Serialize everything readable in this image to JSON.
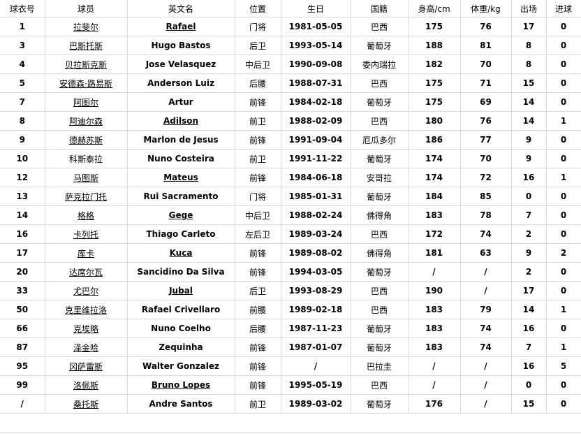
{
  "columns": [
    "球衣号",
    "球员",
    "英文名",
    "位置",
    "生日",
    "国籍",
    "身高/cm",
    "体重/kg",
    "出场",
    "进球"
  ],
  "rows": [
    {
      "no": "1",
      "cn": "拉斐尔",
      "cn_link": true,
      "en": "Rafael",
      "en_link": true,
      "pos": "门将",
      "dob": "1981-05-05",
      "nat": "巴西",
      "h": "175",
      "w": "76",
      "apps": "17",
      "goals": "0"
    },
    {
      "no": "3",
      "cn": "巴斯托斯",
      "cn_link": true,
      "en": "Hugo Bastos",
      "en_link": false,
      "pos": "后卫",
      "dob": "1993-05-14",
      "nat": "葡萄牙",
      "h": "188",
      "w": "81",
      "apps": "8",
      "goals": "0"
    },
    {
      "no": "4",
      "cn": "贝拉斯克斯",
      "cn_link": true,
      "en": "Jose Velasquez",
      "en_link": false,
      "pos": "中后卫",
      "dob": "1990-09-08",
      "nat": "委内瑞拉",
      "h": "182",
      "w": "70",
      "apps": "8",
      "goals": "0"
    },
    {
      "no": "5",
      "cn": "安德森·路易斯",
      "cn_link": true,
      "en": "Anderson Luiz",
      "en_link": false,
      "pos": "后腰",
      "dob": "1988-07-31",
      "nat": "巴西",
      "h": "175",
      "w": "71",
      "apps": "15",
      "goals": "0"
    },
    {
      "no": "7",
      "cn": "阿图尔",
      "cn_link": true,
      "en": "Artur",
      "en_link": false,
      "pos": "前锋",
      "dob": "1984-02-18",
      "nat": "葡萄牙",
      "h": "175",
      "w": "69",
      "apps": "14",
      "goals": "0"
    },
    {
      "no": "8",
      "cn": "阿迪尔森",
      "cn_link": true,
      "en": "Adilson",
      "en_link": true,
      "pos": "前卫",
      "dob": "1988-02-09",
      "nat": "巴西",
      "h": "180",
      "w": "76",
      "apps": "14",
      "goals": "1"
    },
    {
      "no": "9",
      "cn": "德赫苏斯",
      "cn_link": true,
      "en": "Marlon de Jesus",
      "en_link": false,
      "pos": "前锋",
      "dob": "1991-09-04",
      "nat": "厄瓜多尔",
      "h": "186",
      "w": "77",
      "apps": "9",
      "goals": "0"
    },
    {
      "no": "10",
      "cn": "科斯泰拉",
      "cn_link": false,
      "en": "Nuno Costeira",
      "en_link": false,
      "pos": "前卫",
      "dob": "1991-11-22",
      "nat": "葡萄牙",
      "h": "174",
      "w": "70",
      "apps": "9",
      "goals": "0"
    },
    {
      "no": "12",
      "cn": "马图斯",
      "cn_link": true,
      "en": "Mateus",
      "en_link": true,
      "pos": "前锋",
      "dob": "1984-06-18",
      "nat": "安哥拉",
      "h": "174",
      "w": "72",
      "apps": "16",
      "goals": "1"
    },
    {
      "no": "13",
      "cn": "萨克拉门托",
      "cn_link": true,
      "en": "Rui Sacramento",
      "en_link": false,
      "pos": "门将",
      "dob": "1985-01-31",
      "nat": "葡萄牙",
      "h": "184",
      "w": "85",
      "apps": "0",
      "goals": "0"
    },
    {
      "no": "14",
      "cn": "格格",
      "cn_link": true,
      "en": "Gege",
      "en_link": true,
      "pos": "中后卫",
      "dob": "1988-02-24",
      "nat": "佛得角",
      "h": "183",
      "w": "78",
      "apps": "7",
      "goals": "0"
    },
    {
      "no": "16",
      "cn": "卡列托",
      "cn_link": true,
      "en": "Thiago Carleto",
      "en_link": false,
      "pos": "左后卫",
      "dob": "1989-03-24",
      "nat": "巴西",
      "h": "172",
      "w": "74",
      "apps": "2",
      "goals": "0"
    },
    {
      "no": "17",
      "cn": "库卡",
      "cn_link": true,
      "en": "Kuca",
      "en_link": true,
      "pos": "前锋",
      "dob": "1989-08-02",
      "nat": "佛得角",
      "h": "181",
      "w": "63",
      "apps": "9",
      "goals": "2"
    },
    {
      "no": "20",
      "cn": "达席尔瓦",
      "cn_link": true,
      "en": "Sancidino Da Silva",
      "en_link": false,
      "pos": "前锋",
      "dob": "1994-03-05",
      "nat": "葡萄牙",
      "h": "/",
      "w": "/",
      "apps": "2",
      "goals": "0"
    },
    {
      "no": "33",
      "cn": "尤巴尔",
      "cn_link": true,
      "en": "Jubal",
      "en_link": true,
      "pos": "后卫",
      "dob": "1993-08-29",
      "nat": "巴西",
      "h": "190",
      "w": "/",
      "apps": "17",
      "goals": "0"
    },
    {
      "no": "50",
      "cn": "克里维拉洛",
      "cn_link": true,
      "en": "Rafael Crivellaro",
      "en_link": false,
      "pos": "前腰",
      "dob": "1989-02-18",
      "nat": "巴西",
      "h": "183",
      "w": "79",
      "apps": "14",
      "goals": "1"
    },
    {
      "no": "66",
      "cn": "克埃略",
      "cn_link": true,
      "en": "Nuno Coelho",
      "en_link": false,
      "pos": "后腰",
      "dob": "1987-11-23",
      "nat": "葡萄牙",
      "h": "183",
      "w": "74",
      "apps": "16",
      "goals": "0"
    },
    {
      "no": "87",
      "cn": "泽金哈",
      "cn_link": true,
      "en": "Zequinha",
      "en_link": false,
      "pos": "前锋",
      "dob": "1987-01-07",
      "nat": "葡萄牙",
      "h": "183",
      "w": "74",
      "apps": "7",
      "goals": "1"
    },
    {
      "no": "95",
      "cn": "冈萨雷斯",
      "cn_link": true,
      "en": "Walter Gonzalez",
      "en_link": false,
      "pos": "前锋",
      "dob": "/",
      "nat": "巴拉圭",
      "h": "/",
      "w": "/",
      "apps": "16",
      "goals": "5"
    },
    {
      "no": "99",
      "cn": "洛佩斯",
      "cn_link": true,
      "en": "Bruno Lopes",
      "en_link": true,
      "pos": "前锋",
      "dob": "1995-05-19",
      "nat": "巴西",
      "h": "/",
      "w": "/",
      "apps": "0",
      "goals": "0"
    },
    {
      "no": "/",
      "cn": "桑托斯",
      "cn_link": true,
      "en": "Andre Santos",
      "en_link": false,
      "pos": "前卫",
      "dob": "1989-03-02",
      "nat": "葡萄牙",
      "h": "176",
      "w": "/",
      "apps": "15",
      "goals": "0"
    }
  ]
}
